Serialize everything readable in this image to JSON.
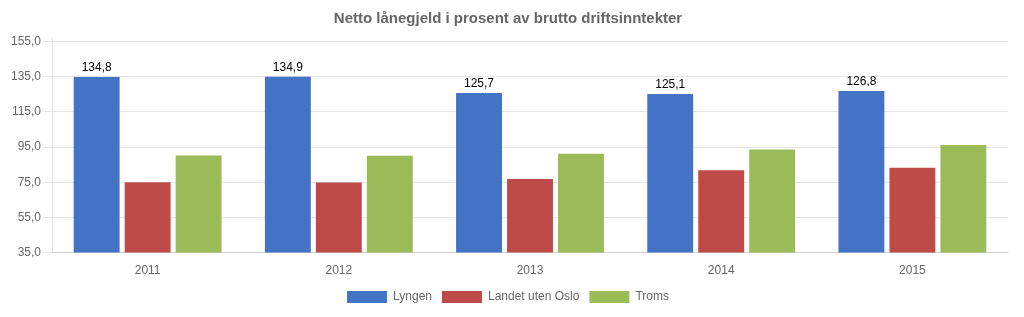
{
  "chart_data": {
    "type": "bar",
    "title": "Netto lånegjeld i prosent av brutto driftsinntekter",
    "categories": [
      "2011",
      "2012",
      "2013",
      "2014",
      "2015"
    ],
    "series": [
      {
        "name": "Lyngen",
        "color": "#4472C4",
        "values": [
          134.8,
          134.9,
          125.7,
          125.1,
          126.8
        ],
        "data_labels": true,
        "value_labels": [
          "134,8",
          "134,9",
          "125,7",
          "125,1",
          "126,8"
        ]
      },
      {
        "name": "Landet uten Oslo",
        "color": "#BE4B48",
        "values": [
          75.0,
          74.8,
          76.8,
          81.8,
          83.2
        ]
      },
      {
        "name": "Troms",
        "color": "#9BBB59",
        "values": [
          90.2,
          90.0,
          91.2,
          93.6,
          96.2
        ]
      }
    ],
    "ylim": [
      35.0,
      157.0
    ],
    "yticks": [
      {
        "value": 35.0,
        "label": "35,0"
      },
      {
        "value": 55.0,
        "label": "55,0"
      },
      {
        "value": 75.0,
        "label": "75,0"
      },
      {
        "value": 95.0,
        "label": "95,0"
      },
      {
        "value": 115.0,
        "label": "115,0"
      },
      {
        "value": 135.0,
        "label": "135,0"
      },
      {
        "value": 155.0,
        "label": "155,0"
      }
    ],
    "grid": true,
    "legend": "bottom"
  }
}
